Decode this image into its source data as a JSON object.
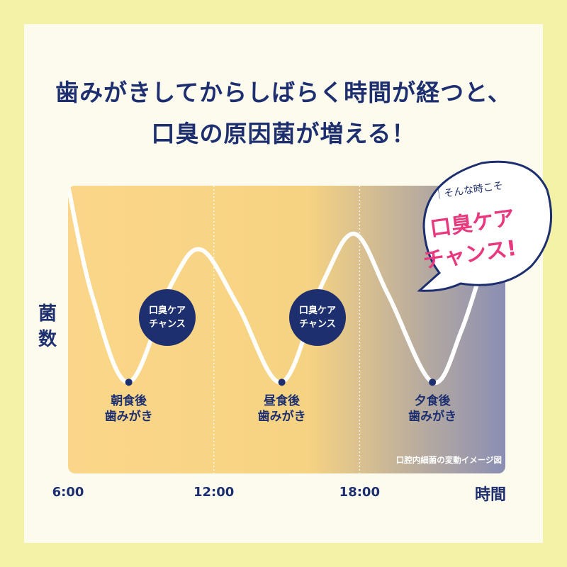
{
  "header": {
    "title_line1": "歯みがきしてからしばらく時間が経つと、",
    "title_line2": "口臭の原因菌が増える！"
  },
  "chart_data": {
    "type": "line",
    "title": "歯みがきしてからしばらく時間が経つと、口臭の原因菌が増える！",
    "xlabel": "時間",
    "ylabel": "菌数",
    "x_ticks": [
      "6:00",
      "12:00",
      "18:00"
    ],
    "series": [
      {
        "values_note": "",
        "points": [
          {
            "x": 6.0,
            "y": 100
          },
          {
            "x": 7.0,
            "y": 45
          },
          {
            "x": 8.5,
            "y": 2
          },
          {
            "x": 10.3,
            "y": 52
          },
          {
            "x": 11.5,
            "y": 68
          },
          {
            "x": 13.0,
            "y": 40
          },
          {
            "x": 14.8,
            "y": 2
          },
          {
            "x": 16.5,
            "y": 52
          },
          {
            "x": 17.8,
            "y": 76
          },
          {
            "x": 19.2,
            "y": 45
          },
          {
            "x": 21.0,
            "y": 2
          },
          {
            "x": 22.2,
            "y": 28
          },
          {
            "x": 23.3,
            "y": 70
          }
        ]
      }
    ],
    "brushing_points": [
      {
        "x": 8.5,
        "y": 2,
        "label_line1": "朝食後",
        "label_line2": "歯みがき"
      },
      {
        "x": 14.8,
        "y": 2,
        "label_line1": "昼食後",
        "label_line2": "歯みがき"
      },
      {
        "x": 21.0,
        "y": 2,
        "label_line1": "夕食後",
        "label_line2": "歯みがき"
      }
    ],
    "chance_badges": [
      {
        "line1": "口臭ケア",
        "line2": "チャンス"
      },
      {
        "line1": "口臭ケア",
        "line2": "チャンス"
      }
    ],
    "caption": "口腔内細菌の変動イメージ図",
    "xlim": [
      6,
      24
    ],
    "ylim": [
      0,
      100
    ],
    "colors": {
      "bg_start": "#fbd68a",
      "bg_end": "#8a8eb4",
      "curve": "#ffffff",
      "navy": "#1d2f6f",
      "pink": "#e9397e"
    }
  },
  "speech_bubble": {
    "small_text": "そんな時こそ",
    "line1": "口臭ケア",
    "line2": "チャンス!"
  }
}
